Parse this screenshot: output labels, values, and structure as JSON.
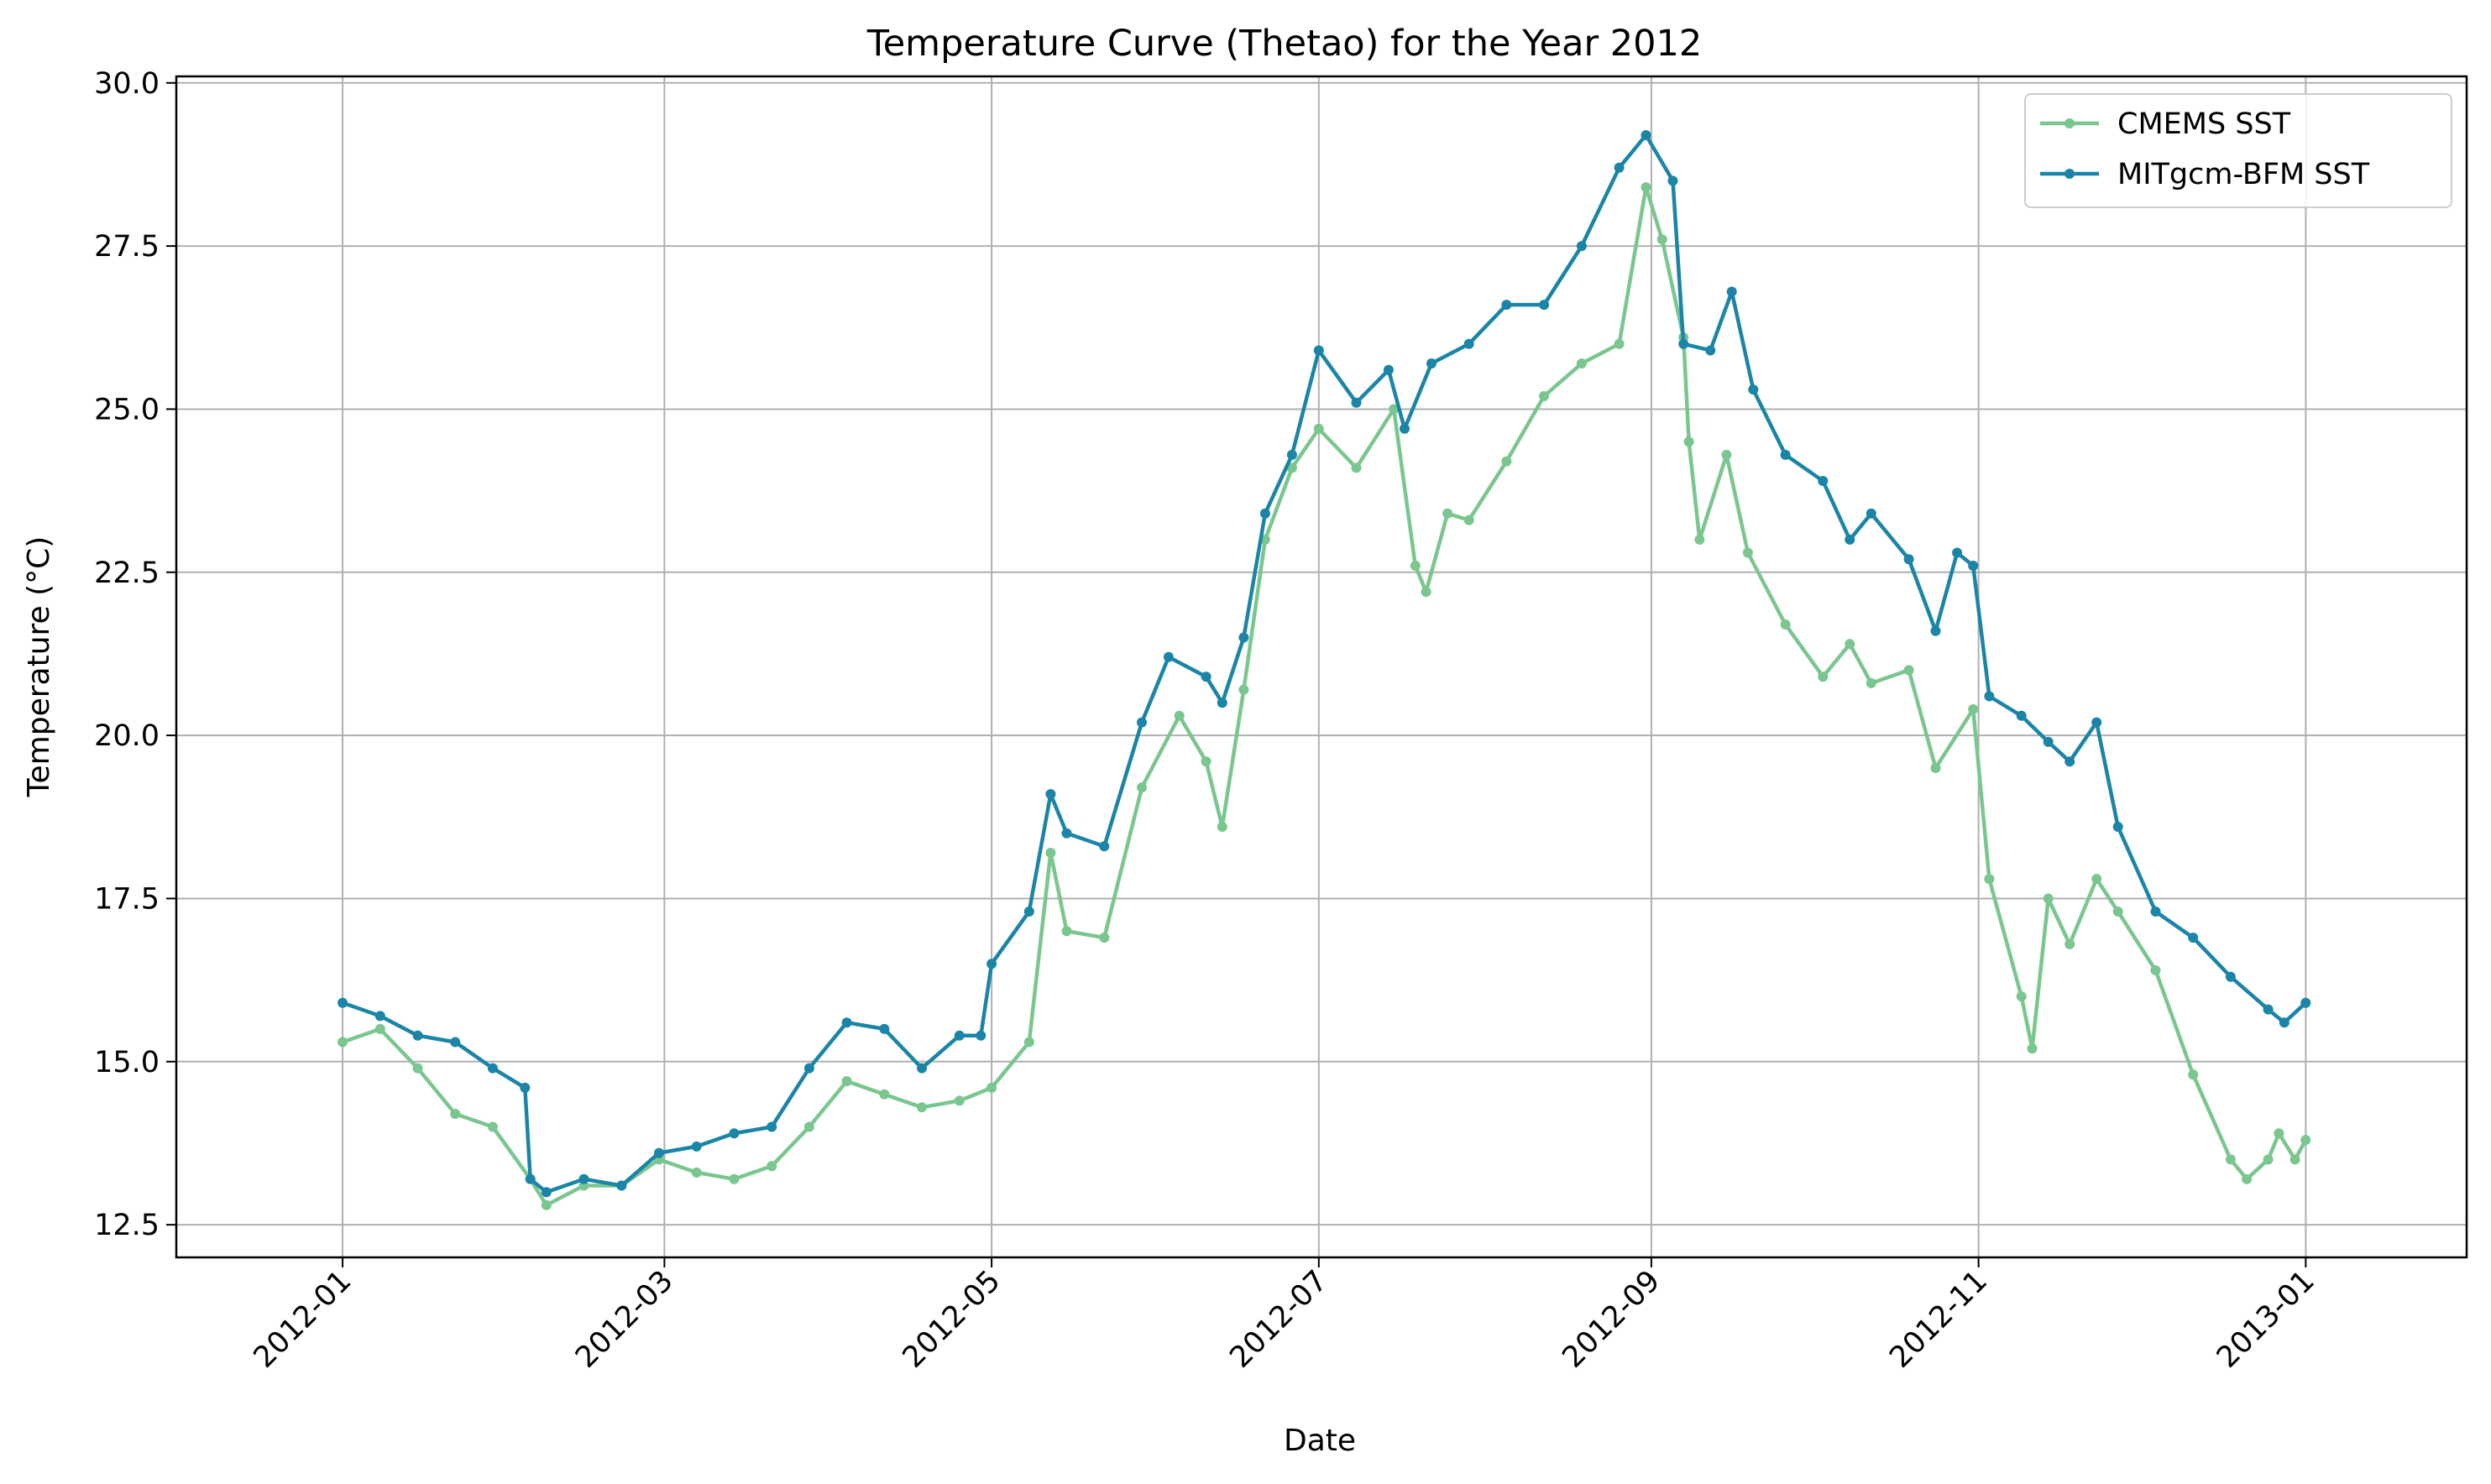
{
  "chart_data": {
    "type": "line",
    "title": "Temperature Curve (Thetao) for the Year 2012",
    "xlabel": "Date",
    "ylabel": "Temperature (°C)",
    "xlim": [
      "2011-12-01",
      "2013-01-31"
    ],
    "ylim": [
      12.0,
      30.1
    ],
    "x_ticks": [
      "2012-01",
      "2012-03",
      "2012-05",
      "2012-07",
      "2012-09",
      "2012-11",
      "2013-01"
    ],
    "y_ticks": [
      "12.5",
      "15.0",
      "17.5",
      "20.0",
      "22.5",
      "25.0",
      "27.5",
      "30.0"
    ],
    "grid": true,
    "legend_position": "top-right",
    "series": [
      {
        "name": "CMEMS SST",
        "color": "#7ac68f",
        "points": [
          [
            "2012-01-01",
            15.3
          ],
          [
            "2012-01-08",
            15.5
          ],
          [
            "2012-01-15",
            14.9
          ],
          [
            "2012-01-22",
            14.2
          ],
          [
            "2012-01-29",
            14.0
          ],
          [
            "2012-02-05",
            13.2
          ],
          [
            "2012-02-08",
            12.8
          ],
          [
            "2012-02-15",
            13.1
          ],
          [
            "2012-02-22",
            13.1
          ],
          [
            "2012-02-29",
            13.5
          ],
          [
            "2012-03-07",
            13.3
          ],
          [
            "2012-03-14",
            13.2
          ],
          [
            "2012-03-21",
            13.4
          ],
          [
            "2012-03-28",
            14.0
          ],
          [
            "2012-04-04",
            14.7
          ],
          [
            "2012-04-11",
            14.5
          ],
          [
            "2012-04-18",
            14.3
          ],
          [
            "2012-04-25",
            14.4
          ],
          [
            "2012-05-01",
            14.6
          ],
          [
            "2012-05-08",
            15.3
          ],
          [
            "2012-05-12",
            18.2
          ],
          [
            "2012-05-15",
            17.0
          ],
          [
            "2012-05-22",
            16.9
          ],
          [
            "2012-05-29",
            19.2
          ],
          [
            "2012-06-05",
            20.3
          ],
          [
            "2012-06-10",
            19.6
          ],
          [
            "2012-06-13",
            18.6
          ],
          [
            "2012-06-17",
            20.7
          ],
          [
            "2012-06-21",
            23.0
          ],
          [
            "2012-06-26",
            24.1
          ],
          [
            "2012-07-01",
            24.7
          ],
          [
            "2012-07-08",
            24.1
          ],
          [
            "2012-07-15",
            25.0
          ],
          [
            "2012-07-19",
            22.6
          ],
          [
            "2012-07-21",
            22.2
          ],
          [
            "2012-07-25",
            23.4
          ],
          [
            "2012-07-29",
            23.3
          ],
          [
            "2012-08-05",
            24.2
          ],
          [
            "2012-08-12",
            25.2
          ],
          [
            "2012-08-19",
            25.7
          ],
          [
            "2012-08-26",
            26.0
          ],
          [
            "2012-08-31",
            28.4
          ],
          [
            "2012-09-03",
            27.6
          ],
          [
            "2012-09-07",
            26.1
          ],
          [
            "2012-09-08",
            24.5
          ],
          [
            "2012-09-10",
            23.0
          ],
          [
            "2012-09-15",
            24.3
          ],
          [
            "2012-09-19",
            22.8
          ],
          [
            "2012-09-26",
            21.7
          ],
          [
            "2012-10-03",
            20.9
          ],
          [
            "2012-10-08",
            21.4
          ],
          [
            "2012-10-12",
            20.8
          ],
          [
            "2012-10-19",
            21.0
          ],
          [
            "2012-10-24",
            19.5
          ],
          [
            "2012-10-31",
            20.4
          ],
          [
            "2012-11-03",
            17.8
          ],
          [
            "2012-11-09",
            16.0
          ],
          [
            "2012-11-11",
            15.2
          ],
          [
            "2012-11-14",
            17.5
          ],
          [
            "2012-11-18",
            16.8
          ],
          [
            "2012-11-23",
            17.8
          ],
          [
            "2012-11-27",
            17.3
          ],
          [
            "2012-12-04",
            16.4
          ],
          [
            "2012-12-11",
            14.8
          ],
          [
            "2012-12-18",
            13.5
          ],
          [
            "2012-12-21",
            13.2
          ],
          [
            "2012-12-25",
            13.5
          ],
          [
            "2012-12-27",
            13.9
          ],
          [
            "2012-12-30",
            13.5
          ],
          [
            "2013-01-01",
            13.8
          ]
        ]
      },
      {
        "name": "MITgcm-BFM SST",
        "color": "#1a85a6",
        "points": [
          [
            "2012-01-01",
            15.9
          ],
          [
            "2012-01-08",
            15.7
          ],
          [
            "2012-01-15",
            15.4
          ],
          [
            "2012-01-22",
            15.3
          ],
          [
            "2012-01-29",
            14.9
          ],
          [
            "2012-02-04",
            14.6
          ],
          [
            "2012-02-05",
            13.2
          ],
          [
            "2012-02-08",
            13.0
          ],
          [
            "2012-02-15",
            13.2
          ],
          [
            "2012-02-22",
            13.1
          ],
          [
            "2012-02-29",
            13.6
          ],
          [
            "2012-03-07",
            13.7
          ],
          [
            "2012-03-14",
            13.9
          ],
          [
            "2012-03-21",
            14.0
          ],
          [
            "2012-03-28",
            14.9
          ],
          [
            "2012-04-04",
            15.6
          ],
          [
            "2012-04-11",
            15.5
          ],
          [
            "2012-04-18",
            14.9
          ],
          [
            "2012-04-25",
            15.4
          ],
          [
            "2012-04-29",
            15.4
          ],
          [
            "2012-05-01",
            16.5
          ],
          [
            "2012-05-08",
            17.3
          ],
          [
            "2012-05-12",
            19.1
          ],
          [
            "2012-05-15",
            18.5
          ],
          [
            "2012-05-22",
            18.3
          ],
          [
            "2012-05-29",
            20.2
          ],
          [
            "2012-06-03",
            21.2
          ],
          [
            "2012-06-10",
            20.9
          ],
          [
            "2012-06-13",
            20.5
          ],
          [
            "2012-06-17",
            21.5
          ],
          [
            "2012-06-21",
            23.4
          ],
          [
            "2012-06-26",
            24.3
          ],
          [
            "2012-07-01",
            25.9
          ],
          [
            "2012-07-08",
            25.1
          ],
          [
            "2012-07-14",
            25.6
          ],
          [
            "2012-07-17",
            24.7
          ],
          [
            "2012-07-22",
            25.7
          ],
          [
            "2012-07-29",
            26.0
          ],
          [
            "2012-08-05",
            26.6
          ],
          [
            "2012-08-12",
            26.6
          ],
          [
            "2012-08-19",
            27.5
          ],
          [
            "2012-08-26",
            28.7
          ],
          [
            "2012-08-31",
            29.2
          ],
          [
            "2012-09-05",
            28.5
          ],
          [
            "2012-09-07",
            26.0
          ],
          [
            "2012-09-12",
            25.9
          ],
          [
            "2012-09-16",
            26.8
          ],
          [
            "2012-09-20",
            25.3
          ],
          [
            "2012-09-26",
            24.3
          ],
          [
            "2012-10-03",
            23.9
          ],
          [
            "2012-10-08",
            23.0
          ],
          [
            "2012-10-12",
            23.4
          ],
          [
            "2012-10-19",
            22.7
          ],
          [
            "2012-10-24",
            21.6
          ],
          [
            "2012-10-28",
            22.8
          ],
          [
            "2012-10-31",
            22.6
          ],
          [
            "2012-11-03",
            20.6
          ],
          [
            "2012-11-09",
            20.3
          ],
          [
            "2012-11-14",
            19.9
          ],
          [
            "2012-11-18",
            19.6
          ],
          [
            "2012-11-23",
            20.2
          ],
          [
            "2012-11-27",
            18.6
          ],
          [
            "2012-12-04",
            17.3
          ],
          [
            "2012-12-11",
            16.9
          ],
          [
            "2012-12-18",
            16.3
          ],
          [
            "2012-12-25",
            15.8
          ],
          [
            "2012-12-28",
            15.6
          ],
          [
            "2013-01-01",
            15.9
          ]
        ]
      }
    ]
  }
}
